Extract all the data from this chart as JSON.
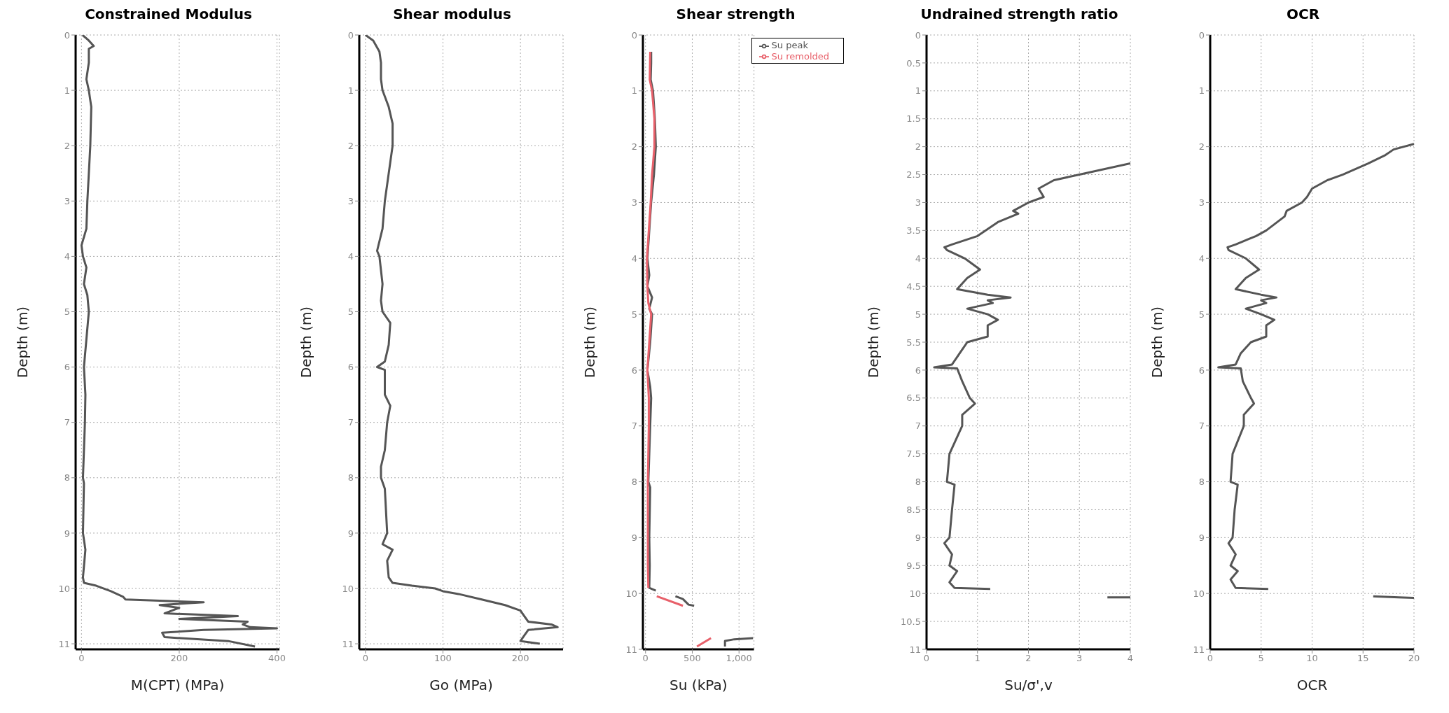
{
  "chart_data": [
    {
      "type": "line",
      "title": "Constrained Modulus",
      "xlabel": "M(CPT) (MPa)",
      "ylabel": "Depth (m)",
      "xlim": [
        -12,
        405
      ],
      "xticks": [
        0,
        200,
        400
      ],
      "ylim": [
        11.1,
        0
      ],
      "yticks": [
        0,
        1,
        2,
        3,
        4,
        5,
        6,
        7,
        8,
        9,
        10,
        11
      ],
      "grid": true,
      "series": [
        {
          "color": "#555555",
          "x": [
            2,
            15,
            25,
            15,
            15,
            10,
            15,
            20,
            18,
            15,
            12,
            10,
            0,
            3,
            10,
            5,
            12,
            15,
            10,
            5,
            8,
            7,
            5,
            3,
            5,
            3,
            8,
            3,
            5,
            30,
            60,
            85,
            90,
            250,
            160,
            200,
            170,
            320,
            200,
            340,
            330,
            345,
            400,
            250,
            165,
            170,
            300,
            355
          ],
          "values": [
            0,
            0.1,
            0.2,
            0.25,
            0.5,
            0.8,
            1,
            1.3,
            2,
            2.5,
            3,
            3.5,
            3.8,
            4,
            4.2,
            4.5,
            4.7,
            5,
            5.5,
            6,
            6.5,
            7,
            7.5,
            8,
            8.1,
            9,
            9.3,
            9.8,
            9.9,
            9.95,
            10.05,
            10.15,
            10.2,
            10.25,
            10.3,
            10.35,
            10.45,
            10.5,
            10.55,
            10.6,
            10.65,
            10.7,
            10.72,
            10.75,
            10.8,
            10.88,
            10.95,
            11.05
          ]
        }
      ]
    },
    {
      "type": "line",
      "title": "Shear modulus",
      "xlabel": "Go (MPa)",
      "ylabel": "Depth (m)",
      "xlim": [
        -8,
        255
      ],
      "xticks": [
        0,
        100,
        200
      ],
      "ylim": [
        11.1,
        0
      ],
      "yticks": [
        0,
        1,
        2,
        3,
        4,
        5,
        6,
        7,
        8,
        9,
        10,
        11
      ],
      "grid": true,
      "series": [
        {
          "color": "#555555",
          "x": [
            0,
            10,
            18,
            20,
            20,
            22,
            30,
            35,
            35,
            30,
            25,
            22,
            15,
            18,
            22,
            20,
            22,
            32,
            30,
            25,
            15,
            25,
            25,
            32,
            28,
            25,
            20,
            20,
            25,
            28,
            22,
            35,
            28,
            30,
            35,
            60,
            90,
            100,
            120,
            150,
            180,
            200,
            205,
            210,
            240,
            248,
            210,
            205,
            200,
            225
          ],
          "values": [
            0,
            0.1,
            0.3,
            0.5,
            0.8,
            1,
            1.3,
            1.6,
            2,
            2.5,
            3,
            3.5,
            3.9,
            4,
            4.5,
            4.8,
            5,
            5.2,
            5.6,
            5.9,
            6,
            6.05,
            6.5,
            6.7,
            7,
            7.5,
            7.8,
            8,
            8.2,
            9,
            9.2,
            9.3,
            9.5,
            9.8,
            9.9,
            9.95,
            10,
            10.05,
            10.1,
            10.2,
            10.3,
            10.4,
            10.5,
            10.6,
            10.65,
            10.7,
            10.75,
            10.85,
            10.95,
            11
          ]
        }
      ]
    },
    {
      "type": "line",
      "title": "Shear strength",
      "xlabel": "Su (kPa)",
      "ylabel": "Depth (m)",
      "xlim": [
        -28,
        1160
      ],
      "xticks": [
        0,
        500,
        {
          "value": 1000,
          "label": "1,000"
        }
      ],
      "ylim": [
        11,
        0
      ],
      "yticks": [
        0,
        1,
        2,
        3,
        4,
        5,
        6,
        7,
        8,
        9,
        10,
        11
      ],
      "grid": true,
      "legend": "top right",
      "series": [
        {
          "name": "Su peak",
          "color": "#555555",
          "x": [
            60,
            60,
            55,
            80,
            100,
            110,
            90,
            60,
            40,
            20,
            40,
            20,
            70,
            40,
            70,
            50,
            20,
            50,
            60,
            50,
            40,
            30,
            50,
            40,
            45,
            40,
            110,
            null,
            320,
            400,
            460,
            520,
            null,
            1150,
            950,
            850,
            850
          ],
          "values": [
            0.3,
            0.5,
            0.8,
            1,
            1.5,
            2,
            2.5,
            3,
            3.5,
            4,
            4.3,
            4.5,
            4.7,
            4.9,
            5,
            5.5,
            6,
            6.3,
            6.5,
            7,
            7.5,
            8,
            8.1,
            9,
            9.5,
            9.9,
            9.95,
            null,
            10.05,
            10.1,
            10.2,
            10.22,
            null,
            10.8,
            10.82,
            10.85,
            10.95
          ]
        },
        {
          "name": "Su remolded",
          "color": "#e8606a",
          "x": [
            50,
            45,
            70,
            95,
            95,
            70,
            55,
            35,
            15,
            20,
            30,
            60,
            40,
            20,
            35,
            35,
            25,
            25,
            25,
            30,
            null,
            120,
            400,
            null,
            700,
            600,
            550
          ],
          "values": [
            0.3,
            0.8,
            1,
            1.5,
            2,
            2.5,
            3,
            3.5,
            4,
            4.5,
            4.8,
            5,
            5.5,
            6,
            6.5,
            7,
            8,
            9,
            9.5,
            9.9,
            null,
            10.05,
            10.22,
            null,
            10.8,
            10.9,
            10.95
          ]
        }
      ]
    },
    {
      "type": "line",
      "title": "Undrained strength ratio",
      "xlabel": "Su/σ',v",
      "ylabel": "Depth (m)",
      "xlim": [
        0,
        4
      ],
      "xticks": [
        0,
        1,
        2,
        3,
        4
      ],
      "ylim": [
        11,
        0
      ],
      "yticks": [
        0,
        0.5,
        1,
        1.5,
        2,
        2.5,
        3,
        3.5,
        4,
        4.5,
        5,
        5.5,
        6,
        6.5,
        7,
        7.5,
        8,
        8.5,
        9,
        9.5,
        10,
        10.5,
        11
      ],
      "grid": true,
      "series": [
        {
          "color": "#555555",
          "x": [
            4,
            3,
            2.5,
            2.2,
            2.3,
            2,
            1.7,
            1.8,
            1.4,
            1,
            0.5,
            0.35,
            0.4,
            0.75,
            1.05,
            0.8,
            0.6,
            1.2,
            1.65,
            1.2,
            1.3,
            0.8,
            1.2,
            1.4,
            1.2,
            1.2,
            0.8,
            0.65,
            0.5,
            0.15,
            0.6,
            0.7,
            0.85,
            0.95,
            0.7,
            0.7,
            0.45,
            0.4,
            0.55,
            0.5,
            0.45,
            0.35,
            0.5,
            0.45,
            0.6,
            0.45,
            0.55,
            1.25,
            null,
            3.55,
            4
          ],
          "values": [
            2.3,
            2.5,
            2.6,
            2.75,
            2.9,
            3,
            3.15,
            3.2,
            3.35,
            3.6,
            3.75,
            3.8,
            3.85,
            4,
            4.2,
            4.35,
            4.55,
            4.65,
            4.7,
            4.75,
            4.8,
            4.9,
            5,
            5.1,
            5.2,
            5.4,
            5.5,
            5.7,
            5.9,
            5.95,
            5.97,
            6.2,
            6.5,
            6.6,
            6.8,
            7,
            7.5,
            8,
            8.05,
            8.5,
            9,
            9.1,
            9.3,
            9.5,
            9.6,
            9.8,
            9.9,
            9.92,
            null,
            10.07,
            10.07
          ]
        }
      ]
    },
    {
      "type": "line",
      "title": "OCR",
      "xlabel": "OCR",
      "ylabel": "Depth (m)",
      "xlim": [
        0,
        20
      ],
      "xticks": [
        0,
        5,
        10,
        15,
        20
      ],
      "ylim": [
        11,
        0
      ],
      "yticks": [
        0,
        1,
        2,
        3,
        4,
        5,
        6,
        7,
        8,
        9,
        10,
        11
      ],
      "grid": true,
      "series": [
        {
          "color": "#555555",
          "x": [
            20,
            18,
            17.2,
            15.5,
            13,
            11.5,
            10,
            9.5,
            9,
            7.5,
            7.3,
            5.5,
            4.5,
            2.5,
            1.7,
            1.8,
            3.5,
            4.8,
            3.5,
            2.5,
            5,
            6.5,
            5,
            5.5,
            3.5,
            5,
            6.3,
            5.5,
            5.5,
            4,
            3,
            2.5,
            0.8,
            3,
            3.2,
            4,
            4.3,
            3.3,
            3.3,
            2.2,
            2,
            2.7,
            2.4,
            2.2,
            1.8,
            2.5,
            2,
            2.7,
            2,
            2.5,
            5.7,
            null,
            16,
            18.5,
            20
          ],
          "values": [
            1.95,
            2.05,
            2.15,
            2.3,
            2.5,
            2.6,
            2.75,
            2.9,
            3,
            3.15,
            3.25,
            3.5,
            3.6,
            3.75,
            3.8,
            3.85,
            4,
            4.2,
            4.35,
            4.55,
            4.65,
            4.7,
            4.75,
            4.8,
            4.9,
            5,
            5.1,
            5.2,
            5.4,
            5.5,
            5.7,
            5.9,
            5.95,
            5.97,
            6.2,
            6.5,
            6.6,
            6.8,
            7,
            7.5,
            8,
            8.05,
            8.5,
            9,
            9.1,
            9.3,
            9.5,
            9.6,
            9.75,
            9.9,
            9.92,
            null,
            10.05,
            10.07,
            10.08
          ]
        }
      ]
    }
  ]
}
